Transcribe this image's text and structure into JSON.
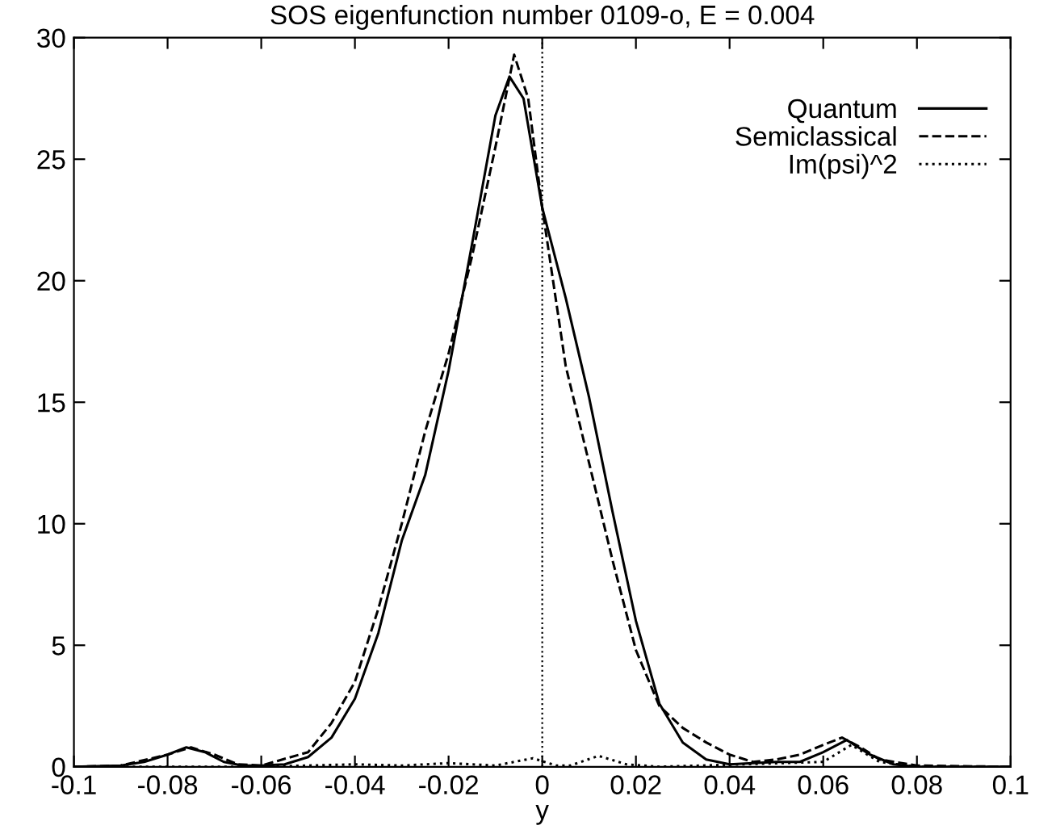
{
  "chart_data": {
    "type": "line",
    "title": "SOS eigenfunction number 0109-o, E = 0.004",
    "xlabel": "y",
    "xlim": [
      -0.1,
      0.1
    ],
    "ylim": [
      0,
      30
    ],
    "xticks": [
      -0.1,
      -0.08,
      -0.06,
      -0.04,
      -0.02,
      0,
      0.02,
      0.04,
      0.06,
      0.08,
      0.1
    ],
    "yticks": [
      0,
      5,
      10,
      15,
      20,
      25,
      30
    ],
    "legend": "top right",
    "grid": false,
    "ref_lines": [
      {
        "axis": "x",
        "value": 0,
        "color": "#000000",
        "line_style": "dotted"
      }
    ],
    "series": [
      {
        "name": "Quantum",
        "color": "#000000",
        "line_style": "solid",
        "x": [
          -0.1,
          -0.09,
          -0.085,
          -0.08,
          -0.076,
          -0.072,
          -0.068,
          -0.064,
          -0.06,
          -0.055,
          -0.05,
          -0.045,
          -0.04,
          -0.035,
          -0.03,
          -0.025,
          -0.02,
          -0.015,
          -0.01,
          -0.007,
          -0.004,
          0,
          0.005,
          0.01,
          0.015,
          0.02,
          0.025,
          0.03,
          0.035,
          0.04,
          0.05,
          0.055,
          0.06,
          0.065,
          0.07,
          0.075,
          0.08,
          0.1
        ],
        "values": [
          0,
          0.05,
          0.2,
          0.5,
          0.8,
          0.6,
          0.2,
          0.05,
          0.05,
          0.1,
          0.4,
          1.2,
          2.8,
          5.5,
          9.3,
          12.0,
          16.3,
          21.5,
          26.8,
          28.4,
          27.5,
          23.0,
          19.3,
          15.2,
          10.5,
          6.0,
          2.6,
          1.0,
          0.3,
          0.1,
          0.2,
          0.2,
          0.6,
          1.1,
          0.5,
          0.1,
          0,
          0
        ]
      },
      {
        "name": "Semiclassical",
        "color": "#000000",
        "line_style": "dashed",
        "x": [
          -0.1,
          -0.09,
          -0.08,
          -0.075,
          -0.07,
          -0.065,
          -0.06,
          -0.05,
          -0.045,
          -0.04,
          -0.035,
          -0.03,
          -0.025,
          -0.02,
          -0.015,
          -0.01,
          -0.006,
          -0.003,
          0,
          0.005,
          0.01,
          0.015,
          0.02,
          0.025,
          0.03,
          0.035,
          0.04,
          0.045,
          0.05,
          0.055,
          0.06,
          0.064,
          0.068,
          0.072,
          0.08,
          0.1
        ],
        "values": [
          0,
          0.05,
          0.5,
          0.8,
          0.5,
          0.1,
          0.05,
          0.6,
          1.8,
          3.5,
          6.5,
          10.0,
          13.8,
          17.0,
          21.0,
          25.5,
          29.3,
          27.5,
          23.0,
          16.5,
          12.5,
          8.5,
          4.8,
          2.5,
          1.6,
          1.0,
          0.5,
          0.2,
          0.3,
          0.5,
          0.9,
          1.2,
          0.8,
          0.3,
          0.05,
          0
        ]
      },
      {
        "name": "Im(psi)^2",
        "color": "#000000",
        "line_style": "dotted",
        "x": [
          -0.1,
          -0.06,
          -0.04,
          -0.03,
          -0.02,
          -0.01,
          -0.002,
          0.003,
          0.006,
          0.012,
          0.018,
          0.025,
          0.06,
          0.066,
          0.072,
          0.08,
          0.1
        ],
        "values": [
          0,
          0,
          0.1,
          0.05,
          0.15,
          0.05,
          0.35,
          0.05,
          0.05,
          0.45,
          0.1,
          0,
          0.2,
          0.9,
          0.2,
          0,
          0
        ]
      }
    ]
  }
}
